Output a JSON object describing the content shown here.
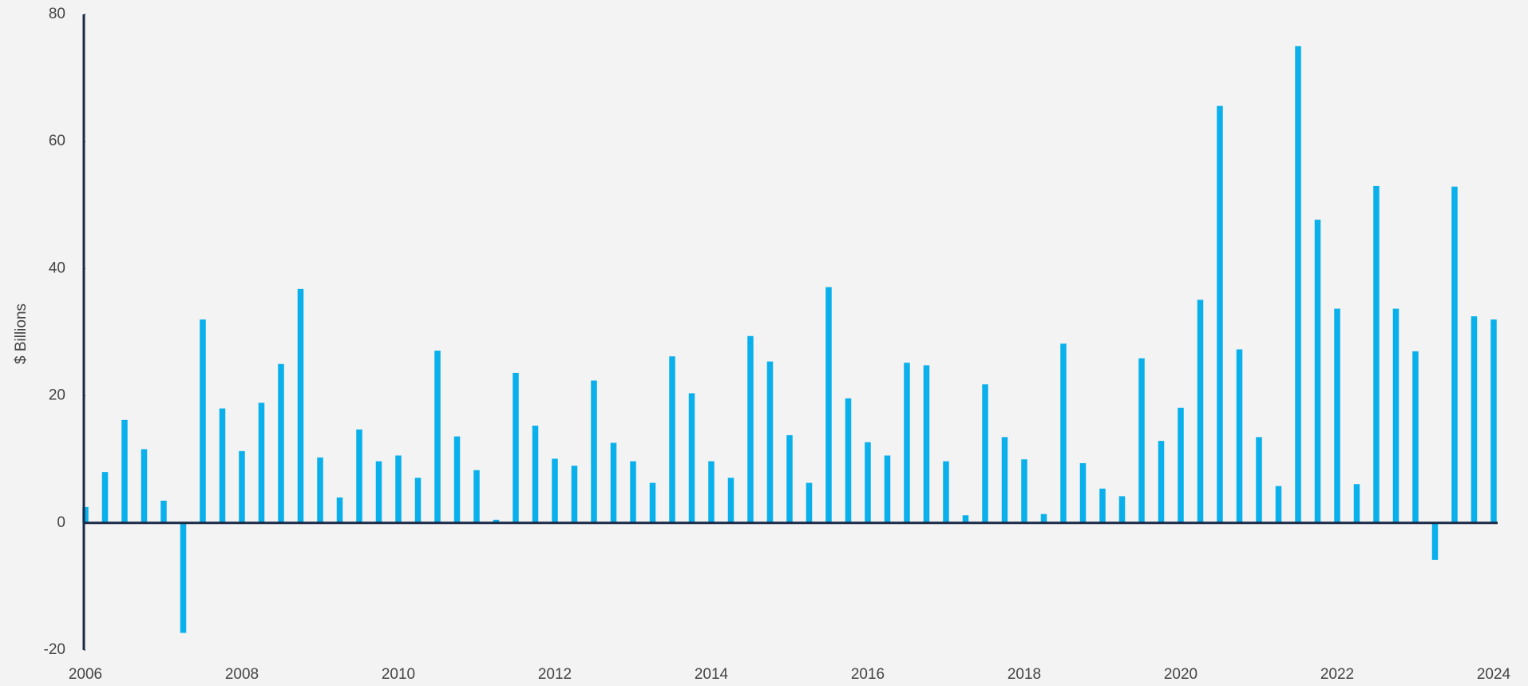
{
  "chart_data": {
    "type": "bar",
    "ylabel": "$ Billions",
    "categories": [
      "2006",
      null,
      null,
      null,
      null,
      null,
      null,
      null,
      "2008",
      null,
      null,
      null,
      null,
      null,
      null,
      null,
      "2010",
      null,
      null,
      null,
      null,
      null,
      null,
      null,
      "2012",
      null,
      null,
      null,
      null,
      null,
      null,
      null,
      "2014",
      null,
      null,
      null,
      null,
      null,
      null,
      null,
      "2016",
      null,
      null,
      null,
      null,
      null,
      null,
      null,
      "2018",
      null,
      null,
      null,
      null,
      null,
      null,
      null,
      "2020",
      null,
      null,
      null,
      null,
      null,
      null,
      null,
      "2022",
      null,
      null,
      null,
      null,
      null,
      null,
      null,
      "2024"
    ],
    "values": [
      2.5,
      8,
      16.2,
      11.6,
      3.5,
      -17.3,
      32,
      18,
      11.3,
      18.9,
      25,
      36.8,
      10.3,
      4,
      14.7,
      9.7,
      10.6,
      7.1,
      27.1,
      13.6,
      8.3,
      0.5,
      23.6,
      15.3,
      10.1,
      9,
      22.4,
      12.6,
      9.7,
      6.3,
      26.2,
      20.4,
      9.7,
      7.1,
      29.4,
      25.4,
      13.8,
      6.3,
      37.1,
      19.6,
      12.7,
      10.6,
      25.2,
      24.8,
      9.7,
      1.2,
      21.8,
      13.5,
      10,
      1.4,
      28.2,
      9.4,
      5.4,
      4.2,
      25.9,
      12.9,
      18.1,
      35.1,
      65.6,
      27.3,
      13.5,
      5.8,
      75,
      47.7,
      33.7,
      6.1,
      53,
      33.7,
      27,
      -5.8,
      52.9,
      32.5,
      32
    ],
    "color": "#0ab0ec",
    "ylim": [
      -20,
      80
    ],
    "yticks": [
      -20,
      0,
      20,
      40,
      60,
      80
    ],
    "grid": false
  }
}
